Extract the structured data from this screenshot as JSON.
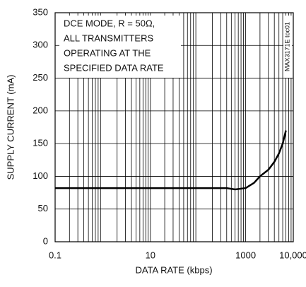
{
  "chart_data": {
    "type": "line",
    "x_label": "DATA RATE (kbps)",
    "y_label": "SUPPLY CURRENT (mA)",
    "annotation": [
      "DCE MODE, R = 50Ω,",
      "ALL TRANSMITTERS",
      "OPERATING AT THE",
      "SPECIFIED DATA RATE"
    ],
    "side_label": "MAX3171E toc01",
    "x_scale": "log",
    "xlim": [
      0.1,
      10000
    ],
    "xticks": [
      0.1,
      10,
      1000,
      {
        "value": 10000,
        "label": "10,000"
      }
    ],
    "ylim": [
      0,
      350
    ],
    "yticks": [
      0,
      50,
      100,
      150,
      200,
      250,
      300,
      350
    ],
    "grid": true,
    "series": [
      {
        "color": "#000000",
        "x": [
          0.1,
          1,
          10,
          100,
          400,
          600,
          1000,
          1500,
          2000,
          3000,
          4000,
          5000,
          6000,
          7000
        ],
        "values": [
          82,
          82,
          82,
          82,
          82,
          80,
          82,
          90,
          100,
          110,
          122,
          135,
          150,
          170
        ]
      }
    ]
  }
}
